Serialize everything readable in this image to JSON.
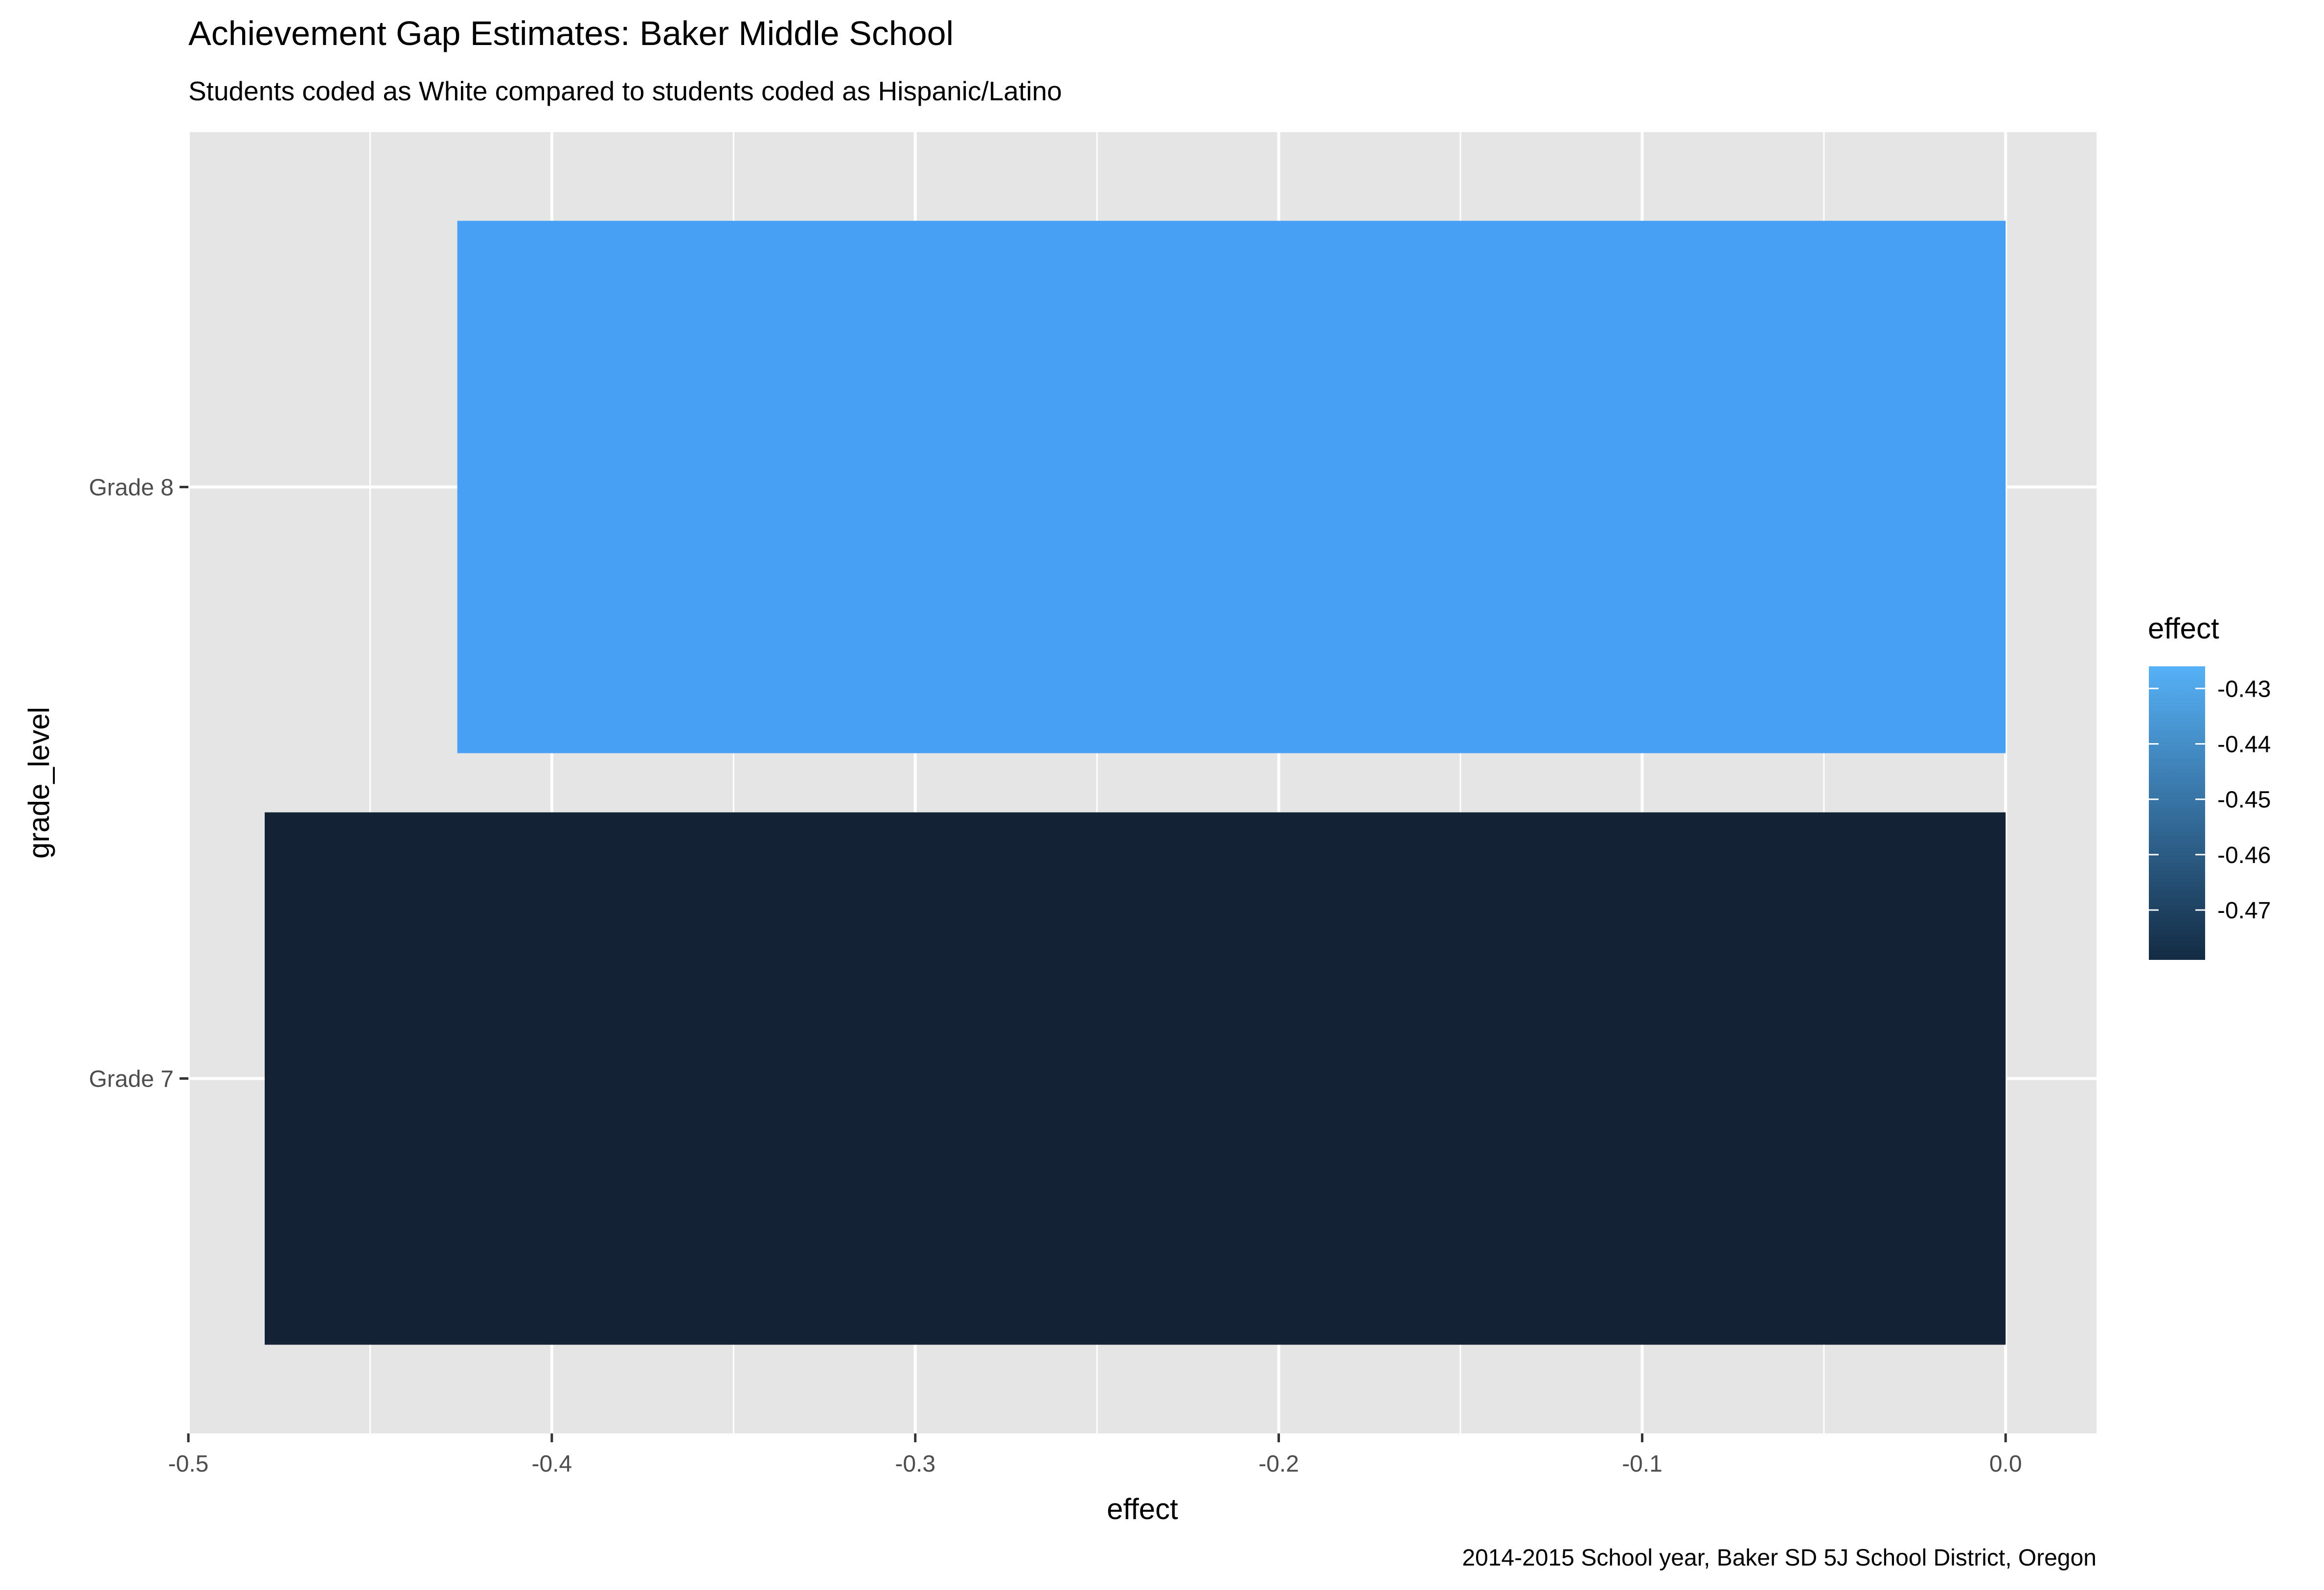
{
  "chart_data": {
    "type": "bar",
    "orientation": "horizontal",
    "title": "Achievement Gap Estimates: Baker Middle School",
    "subtitle": "Students coded as White compared to students coded as Hispanic/Latino",
    "caption": "2014-2015 School year, Baker SD 5J School District, Oregon",
    "xlabel": "effect",
    "ylabel": "grade_level",
    "categories": [
      "Grade 7",
      "Grade 8"
    ],
    "values": [
      -0.479,
      -0.426
    ],
    "xlim": [
      -0.5,
      0.025
    ],
    "x_ticks": [
      -0.5,
      -0.4,
      -0.3,
      -0.2,
      -0.1,
      0.0
    ],
    "x_tick_labels": [
      "-0.5",
      "-0.4",
      "-0.3",
      "-0.2",
      "-0.1",
      "0.0"
    ],
    "grid": true,
    "legend": {
      "title": "effect",
      "placement": "right",
      "type": "colorbar",
      "range": [
        -0.479,
        -0.426
      ],
      "ticks": [
        -0.43,
        -0.44,
        -0.45,
        -0.46,
        -0.47
      ],
      "tick_labels": [
        "-0.43",
        "-0.44",
        "-0.45",
        "-0.46",
        "-0.47"
      ],
      "low_color": "#132b43",
      "high_color": "#56b1f7"
    },
    "bar_colors": [
      "#132234",
      "#48a0f5"
    ],
    "panel_background": "#e5e5e5",
    "grid_color": "#ffffff"
  }
}
